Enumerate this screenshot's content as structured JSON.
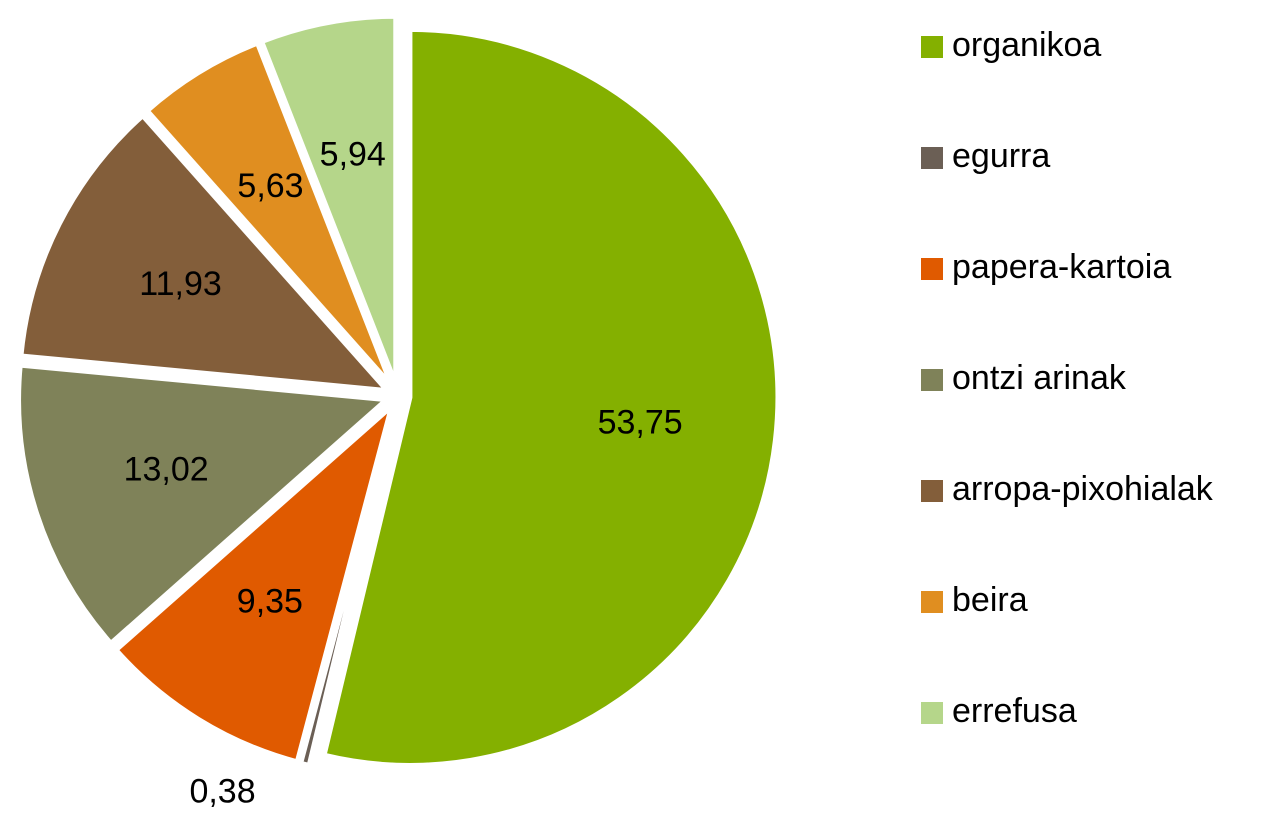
{
  "chart_data": {
    "type": "pie",
    "categories": [
      "organikoa",
      "egurra",
      "papera-kartoia",
      "ontzi arinak",
      "arropa-pixohialak",
      "beira",
      "errefusa"
    ],
    "values": [
      53.75,
      0.38,
      9.35,
      13.02,
      11.93,
      5.63,
      5.94
    ],
    "value_labels": [
      "53,75",
      "0,38",
      "9,35",
      "13,02",
      "11,93",
      "5,63",
      "5,94"
    ],
    "colors": [
      "#84b000",
      "#6b5f55",
      "#e05a00",
      "#7f8259",
      "#835e3a",
      "#e08e20",
      "#b5d68a"
    ],
    "legend": "right"
  }
}
